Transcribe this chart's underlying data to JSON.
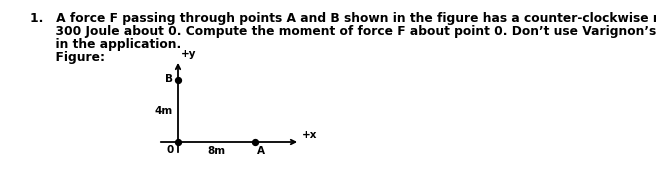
{
  "background_color": "#ffffff",
  "line1": "1.   A force F passing through points A and B shown in the figure has a counter-clockwise moment of",
  "line2": "      300 Joule about 0. Compute the moment of force F about point 0. Don’t use Varignon’s Theorem",
  "line3": "      in the application.",
  "line4": "      Figure:",
  "font_family": "DejaVu Sans",
  "fig_width": 6.56,
  "fig_height": 1.8,
  "dpi": 100,
  "text_fontsize": 8.8,
  "label_fontsize": 7.5,
  "diagram_fontsize": 7.5,
  "text_color": "black",
  "dot_color": "black",
  "line_color": "black",
  "lw": 1.3,
  "dot_size": 18,
  "label_plus_y": "+y",
  "label_plus_x": "+x",
  "label_O": "0",
  "label_B": "B",
  "label_4m": "4m",
  "label_8m": "8m",
  "label_A": "A"
}
